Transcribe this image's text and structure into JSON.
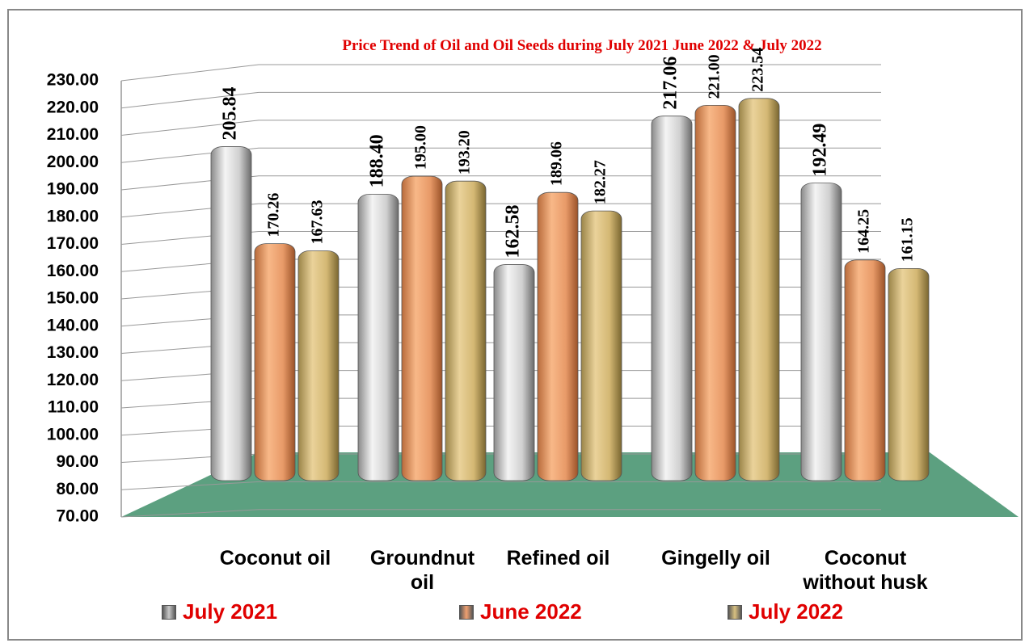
{
  "chart_data": {
    "type": "bar",
    "title": "Price Trend of Oil and Oil Seeds during  July 2021  June 2022  &  July 2022",
    "categories": [
      "Coconut oil",
      "Groundnut oil",
      "Refined oil",
      "Gingelly oil",
      "Coconut without husk"
    ],
    "series": [
      {
        "name": "July 2021",
        "color": "#c8c8c8",
        "values": [
          205.84,
          188.4,
          162.58,
          217.06,
          192.49
        ],
        "value_labels": [
          "205.84",
          "188.40",
          "162.58",
          "217.06",
          "192.49"
        ]
      },
      {
        "name": "June 2022",
        "color": "#f0a070",
        "values": [
          170.26,
          195.0,
          189.06,
          221.0,
          164.25
        ],
        "value_labels": [
          "170.26",
          "195.00",
          "189.06",
          "221.00",
          "164.25"
        ]
      },
      {
        "name": "July 2022",
        "color": "#d8c080",
        "values": [
          167.63,
          193.2,
          182.27,
          223.54,
          161.15
        ],
        "value_labels": [
          "167.63",
          "193.20",
          "182.27",
          "223.54",
          "161.15"
        ]
      }
    ],
    "ylim": [
      70,
      230
    ],
    "yticks": [
      {
        "value": 70,
        "label": "70.00"
      },
      {
        "value": 80,
        "label": "80.00"
      },
      {
        "value": 90,
        "label": "90.00"
      },
      {
        "value": 100,
        "label": "100.00"
      },
      {
        "value": 110,
        "label": "110.00"
      },
      {
        "value": 120,
        "label": "120.00"
      },
      {
        "value": 130,
        "label": "130.00"
      },
      {
        "value": 140,
        "label": "140.00"
      },
      {
        "value": 150,
        "label": "150.00"
      },
      {
        "value": 160,
        "label": "160.00"
      },
      {
        "value": 170,
        "label": "170.00"
      },
      {
        "value": 180,
        "label": "180.00"
      },
      {
        "value": 190,
        "label": "190.00"
      },
      {
        "value": 200,
        "label": "200.00"
      },
      {
        "value": 210,
        "label": "210.00"
      },
      {
        "value": 220,
        "label": "220.00"
      },
      {
        "value": 230,
        "label": "230.00"
      }
    ],
    "grid": true
  }
}
